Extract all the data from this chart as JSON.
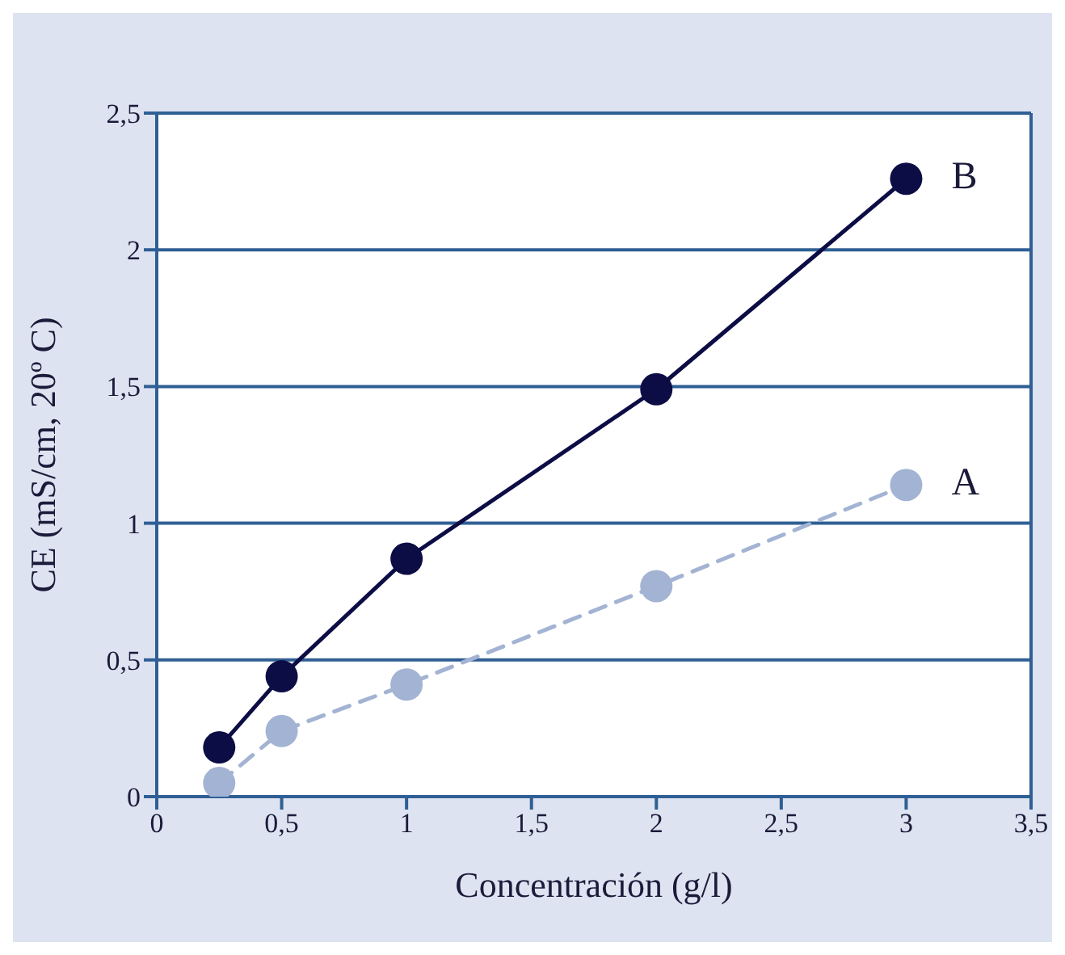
{
  "chart_data": {
    "type": "line",
    "xlabel": "Concentración (g/l)",
    "ylabel": "CE (mS/cm, 20º C)",
    "xlim": [
      0,
      3.5
    ],
    "ylim": [
      0,
      2.5
    ],
    "xticks": [
      0,
      {
        "value": 0.5,
        "label": "0,5"
      },
      1,
      {
        "value": 1.5,
        "label": "1,5"
      },
      2,
      {
        "value": 2.5,
        "label": "2,5"
      },
      3,
      {
        "value": 3.5,
        "label": "3,5"
      }
    ],
    "yticks": [
      0,
      {
        "value": 0.5,
        "label": "0,5"
      },
      1,
      {
        "value": 1.5,
        "label": "1,5"
      },
      2,
      {
        "value": 2.5,
        "label": "2,5"
      }
    ],
    "grid": "y",
    "x": [
      0.25,
      0.5,
      1,
      2,
      3
    ],
    "series": [
      {
        "name": "B",
        "color": "#0d0d45",
        "values": [
          0.18,
          0.44,
          0.87,
          1.49,
          2.26
        ],
        "marker": "circle",
        "line_style": "solid"
      },
      {
        "name": "A",
        "color": "#a3b3d3",
        "values": [
          0.05,
          0.24,
          0.41,
          0.77,
          1.14
        ],
        "marker": "circle",
        "line_style": "dashed"
      }
    ]
  }
}
